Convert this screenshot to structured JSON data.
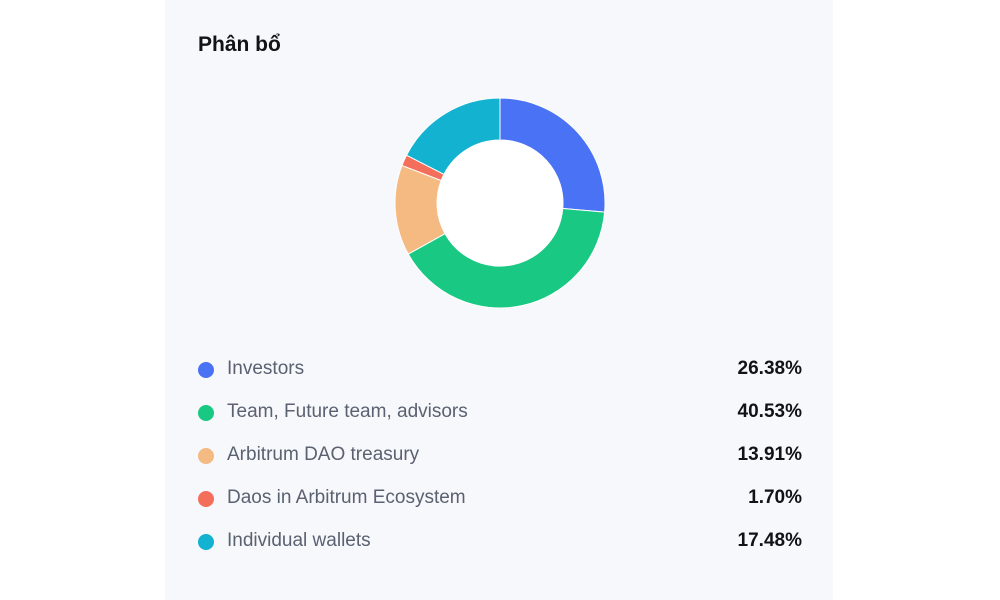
{
  "panel": {
    "title": "Phân bổ"
  },
  "chart_data": {
    "type": "pie",
    "donut": true,
    "categories": [
      "Investors",
      "Team, Future team, advisors",
      "Arbitrum DAO treasury",
      "Daos in Arbitrum Ecosystem",
      "Individual wallets"
    ],
    "values": [
      26.38,
      40.53,
      13.91,
      1.7,
      17.48
    ],
    "value_labels": [
      "26.38%",
      "40.53%",
      "13.91%",
      "1.70%",
      "17.48%"
    ],
    "colors": [
      "#4a72f5",
      "#19c882",
      "#f4ba82",
      "#f46f5b",
      "#13b2d0"
    ],
    "legend_position": "below"
  }
}
